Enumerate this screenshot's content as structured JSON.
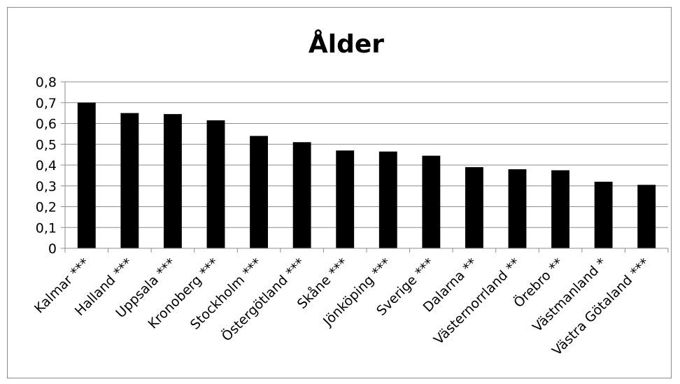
{
  "chart_data": {
    "type": "bar",
    "title": "Ålder",
    "xlabel": "",
    "ylabel": "",
    "ylim": [
      0,
      0.8
    ],
    "yticks": [
      "0",
      "0,1",
      "0,2",
      "0,3",
      "0,4",
      "0,5",
      "0,6",
      "0,7",
      "0,8"
    ],
    "grid": true,
    "legend": "none",
    "bar_color": "#000000",
    "categories": [
      "Kalmar ***",
      "Halland ***",
      "Uppsala ***",
      "Kronoberg ***",
      "Stockholm ***",
      "Östergötland ***",
      "Skåne ***",
      "Jönköping ***",
      "Sverige ***",
      "Dalarna **",
      "Västernorrland **",
      "Örebro **",
      "Västmanland *",
      "Västra Götaland ***"
    ],
    "values": [
      0.7,
      0.65,
      0.645,
      0.615,
      0.54,
      0.51,
      0.47,
      0.465,
      0.445,
      0.39,
      0.38,
      0.375,
      0.32,
      0.305
    ]
  }
}
